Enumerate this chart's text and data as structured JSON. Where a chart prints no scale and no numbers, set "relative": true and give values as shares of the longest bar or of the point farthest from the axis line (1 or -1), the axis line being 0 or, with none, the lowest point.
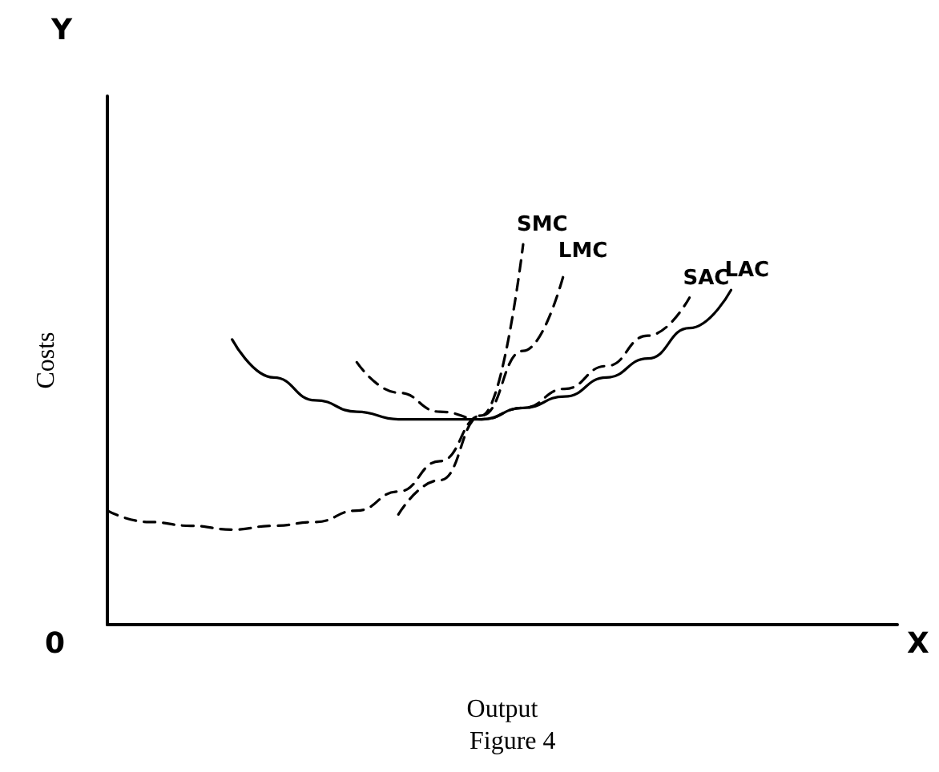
{
  "chart_data": {
    "type": "line",
    "relative": true,
    "xlabel": "Output",
    "ylabel": "Costs",
    "annotations": [
      "Y",
      "X",
      "0",
      "Figure 4"
    ],
    "categories": [
      null,
      null,
      null,
      null,
      null,
      null,
      null,
      null,
      null,
      null,
      null,
      null,
      null,
      null,
      null,
      null,
      null,
      null,
      null,
      null
    ],
    "legend": false,
    "grid": false,
    "marker": "none",
    "series": [
      {
        "name": "SMC",
        "color": "#000000",
        "line_style": "dashed",
        "values": [
          null,
          null,
          null,
          null,
          null,
          null,
          null,
          0.29,
          0.38,
          0.55,
          1,
          null,
          null,
          null,
          null,
          null,
          null,
          null,
          null,
          null
        ]
      },
      {
        "name": "LMC",
        "color": "#000000",
        "line_style": "dashed",
        "values": [
          0.3,
          0.27,
          0.26,
          0.25,
          0.26,
          0.27,
          0.3,
          0.35,
          0.43,
          0.55,
          0.72,
          0.93,
          null,
          null,
          null,
          null,
          null,
          null,
          null,
          null
        ]
      },
      {
        "name": "SAC",
        "color": "#000000",
        "line_style": "dashed",
        "values": [
          null,
          null,
          null,
          null,
          null,
          null,
          0.69,
          0.61,
          0.56,
          0.54,
          0.57,
          0.62,
          0.68,
          0.76,
          0.86,
          null,
          null,
          null,
          null,
          null
        ]
      },
      {
        "name": "LAC",
        "color": "#000000",
        "line_style": "solid",
        "values": [
          null,
          null,
          null,
          0.75,
          0.65,
          0.59,
          0.56,
          0.54,
          0.54,
          0.54,
          0.57,
          0.6,
          0.65,
          0.7,
          0.78,
          0.88,
          null,
          null,
          null,
          null
        ]
      }
    ]
  }
}
